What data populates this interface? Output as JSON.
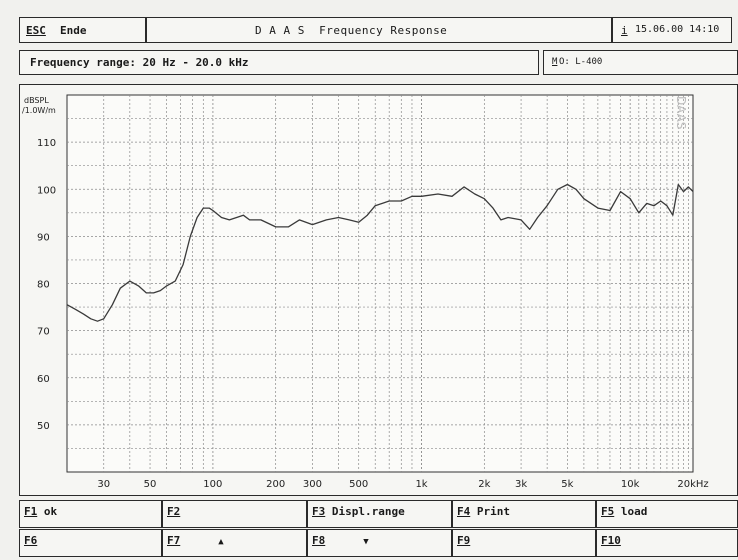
{
  "header": {
    "esc_key": "ESC",
    "esc_label": "Ende",
    "title": "D A A S  Frequency Response",
    "info_key": "i",
    "datetime": "15.06.00 14:10"
  },
  "subheader": {
    "range_text": "Frequency range: 20 Hz - 20.0 kHz",
    "mic_key": "M",
    "mic_label": "O: L-400"
  },
  "watermark": "DAAS",
  "fkeys_row1": [
    {
      "key": "F1",
      "label": " ok"
    },
    {
      "key": "F2",
      "label": ""
    },
    {
      "key": "F3",
      "label": " Displ.range"
    },
    {
      "key": "F4",
      "label": " Print"
    },
    {
      "key": "F5",
      "label": " load"
    }
  ],
  "fkeys_row2": [
    {
      "key": "F6",
      "label": ""
    },
    {
      "key": "F7",
      "label": "",
      "arrow": "▲"
    },
    {
      "key": "F8",
      "label": "",
      "arrow": "▼"
    },
    {
      "key": "F9",
      "label": ""
    },
    {
      "key": "F10",
      "label": ""
    }
  ],
  "chart_data": {
    "type": "line",
    "ylabel": "dBSPL /1.0W/m",
    "xscale": "log",
    "xlim": [
      20,
      20000
    ],
    "ylim": [
      40,
      120
    ],
    "grid": true,
    "yticks": [
      50,
      60,
      70,
      80,
      90,
      100,
      110
    ],
    "xticks": [
      {
        "value": 30,
        "label": "30"
      },
      {
        "value": 50,
        "label": "50"
      },
      {
        "value": 100,
        "label": "100"
      },
      {
        "value": 200,
        "label": "200"
      },
      {
        "value": 300,
        "label": "300"
      },
      {
        "value": 500,
        "label": "500"
      },
      {
        "value": 1000,
        "label": "1k"
      },
      {
        "value": 2000,
        "label": "2k"
      },
      {
        "value": 3000,
        "label": "3k"
      },
      {
        "value": 5000,
        "label": "5k"
      },
      {
        "value": 10000,
        "label": "10k"
      },
      {
        "value": 20000,
        "label": "20kHz"
      }
    ],
    "series": [
      {
        "color": "#3a3a3a",
        "x": [
          20,
          22,
          24,
          26,
          28,
          30,
          33,
          36,
          40,
          44,
          48,
          52,
          56,
          60,
          66,
          72,
          78,
          84,
          90,
          96,
          100,
          110,
          120,
          130,
          140,
          150,
          170,
          200,
          230,
          260,
          300,
          350,
          400,
          450,
          500,
          550,
          600,
          700,
          800,
          900,
          1000,
          1200,
          1400,
          1600,
          1800,
          2000,
          2200,
          2400,
          2600,
          3000,
          3300,
          3600,
          4000,
          4500,
          5000,
          5500,
          6000,
          7000,
          8000,
          9000,
          10000,
          11000,
          12000,
          13000,
          14000,
          15000,
          16000,
          17000,
          18000,
          19000,
          20000
        ],
        "y": [
          75.5,
          74.5,
          73.5,
          72.5,
          72.0,
          72.5,
          75.5,
          79.0,
          80.5,
          79.5,
          78.0,
          78.0,
          78.5,
          79.5,
          80.5,
          84.0,
          90.0,
          94.0,
          96.0,
          96.0,
          95.5,
          94.0,
          93.5,
          94.0,
          94.5,
          93.5,
          93.5,
          92.0,
          92.0,
          93.5,
          92.5,
          93.5,
          94.0,
          93.5,
          93.0,
          94.5,
          96.5,
          97.5,
          97.5,
          98.5,
          98.5,
          99.0,
          98.5,
          100.5,
          99.0,
          98.0,
          96.0,
          93.5,
          94.0,
          93.5,
          91.5,
          94.0,
          96.5,
          100.0,
          101.0,
          100.0,
          98.0,
          96.0,
          95.5,
          99.5,
          98.0,
          95.0,
          97.0,
          96.5,
          97.5,
          96.5,
          94.5,
          101.0,
          99.5,
          100.5,
          99.5
        ]
      }
    ]
  }
}
